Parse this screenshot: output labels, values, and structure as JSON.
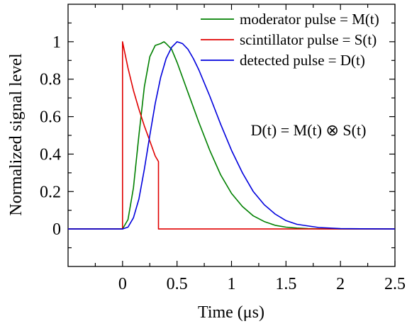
{
  "chart_data": {
    "type": "line",
    "xlabel": "Time (μs)",
    "ylabel": "Normalized signal level",
    "xlim": [
      -0.5,
      2.5
    ],
    "ylim": [
      -0.2,
      1.2
    ],
    "xticks": [
      0,
      0.5,
      1,
      1.5,
      2,
      2.5
    ],
    "xtick_labels": [
      "0",
      "0.5",
      "1",
      "1.5",
      "2",
      "2.5"
    ],
    "yticks": [
      0,
      0.2,
      0.4,
      0.6,
      0.8,
      1
    ],
    "ytick_labels": [
      "0",
      "0.2",
      "0.4",
      "0.6",
      "0.8",
      "1"
    ],
    "grid": false,
    "legend_position": "top-right",
    "annotation": "D(t) = M(t) ⊗ S(t)",
    "series": [
      {
        "name": "moderator pulse = M(t)",
        "color": "#008000",
        "x": [
          -0.5,
          0.0,
          0.05,
          0.1,
          0.15,
          0.2,
          0.25,
          0.3,
          0.35,
          0.38,
          0.4,
          0.45,
          0.5,
          0.55,
          0.6,
          0.7,
          0.8,
          0.9,
          1.0,
          1.1,
          1.2,
          1.3,
          1.4,
          1.5,
          1.6,
          1.7,
          1.8,
          2.0,
          2.5
        ],
        "y": [
          0,
          0,
          0.05,
          0.22,
          0.5,
          0.76,
          0.92,
          0.98,
          0.99,
          1.0,
          0.99,
          0.96,
          0.89,
          0.81,
          0.73,
          0.57,
          0.42,
          0.29,
          0.19,
          0.12,
          0.07,
          0.04,
          0.02,
          0.01,
          0.005,
          0.002,
          0.001,
          0,
          0
        ]
      },
      {
        "name": "scintillator pulse = S(t)",
        "color": "#e00000",
        "x": [
          -0.5,
          0.0,
          0.0,
          0.05,
          0.1,
          0.15,
          0.2,
          0.25,
          0.3,
          0.32,
          0.33,
          0.33,
          2.5
        ],
        "y": [
          0,
          0,
          1.0,
          0.86,
          0.74,
          0.64,
          0.55,
          0.47,
          0.39,
          0.37,
          0.36,
          0,
          0
        ]
      },
      {
        "name": "detected pulse = D(t)",
        "color": "#0000dd",
        "x": [
          -0.5,
          0.0,
          0.05,
          0.1,
          0.15,
          0.2,
          0.25,
          0.3,
          0.35,
          0.4,
          0.45,
          0.5,
          0.55,
          0.6,
          0.65,
          0.7,
          0.8,
          0.9,
          1.0,
          1.1,
          1.2,
          1.3,
          1.4,
          1.5,
          1.6,
          1.8,
          2.0,
          2.5
        ],
        "y": [
          0,
          0,
          0.01,
          0.06,
          0.16,
          0.32,
          0.5,
          0.67,
          0.81,
          0.91,
          0.97,
          1.0,
          0.99,
          0.96,
          0.91,
          0.85,
          0.71,
          0.56,
          0.42,
          0.3,
          0.2,
          0.13,
          0.08,
          0.045,
          0.025,
          0.008,
          0.002,
          0
        ]
      }
    ]
  }
}
